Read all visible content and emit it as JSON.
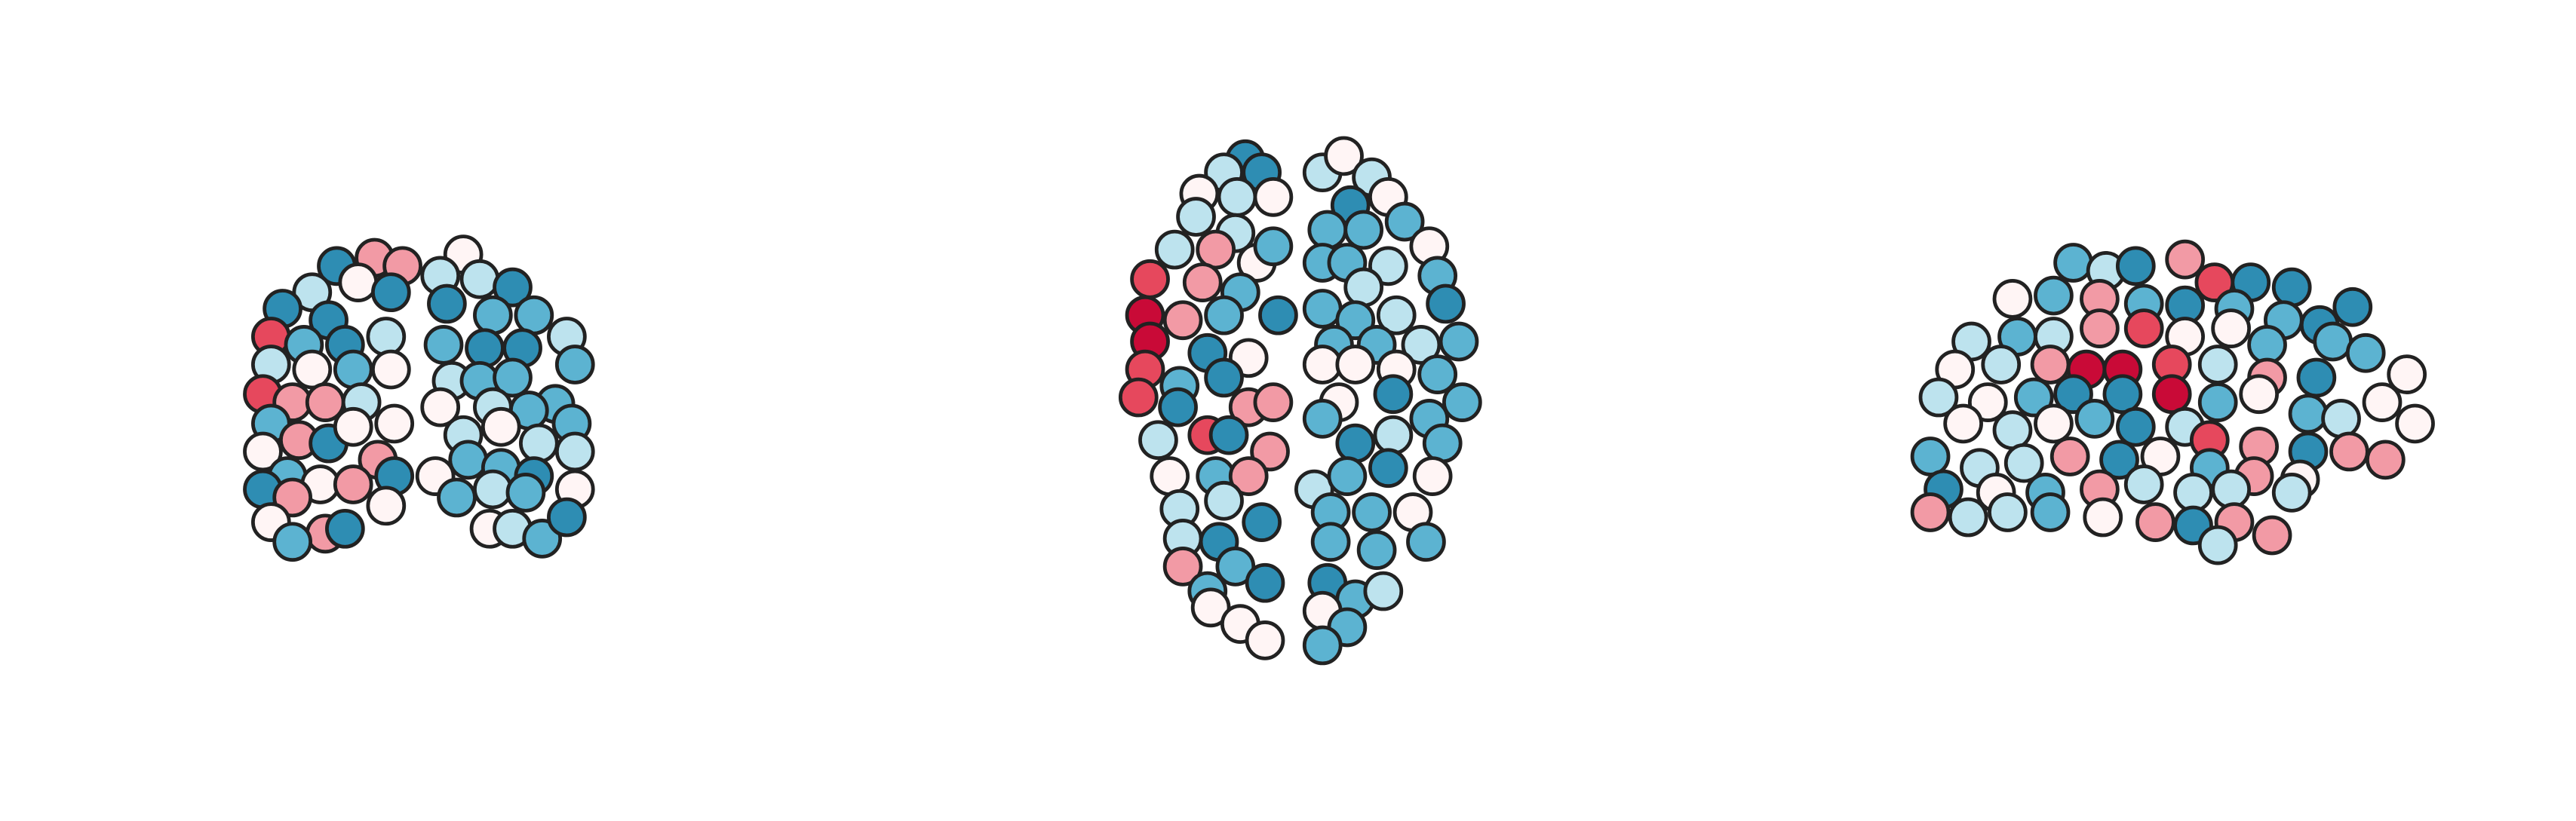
{
  "chart_data": {
    "type": "scatter",
    "xlim": [
      0,
      1568
    ],
    "ylim": [
      500,
      0
    ],
    "marker_edge": "#222222",
    "series": [
      {
        "x": [
          205,
          228,
          245,
          218,
          238,
          190,
          172,
          200,
          165,
          185,
          210,
          235,
          165,
          190,
          215,
          238,
          160,
          178,
          198,
          220,
          240,
          165,
          182,
          200,
          215,
          230,
          160,
          175,
          195,
          215,
          240,
          160,
          178,
          165,
          198,
          178,
          210,
          235,
          282,
          268,
          292,
          312,
          272,
          300,
          325,
          345,
          270,
          295,
          318,
          350,
          275,
          292,
          312,
          338,
          268,
          300,
          322,
          348,
          282,
          305,
          328,
          350,
          265,
          285,
          305,
          325,
          350,
          278,
          300,
          320,
          298,
          312,
          330,
          345
        ],
        "y": [
          162,
          157,
          162,
          172,
          178,
          178,
          188,
          195,
          205,
          210,
          210,
          205,
          222,
          225,
          225,
          225,
          240,
          245,
          245,
          245,
          258,
          258,
          268,
          270,
          260,
          280,
          275,
          290,
          295,
          295,
          290,
          298,
          303,
          318,
          325,
          330,
          322,
          308,
          155,
          168,
          170,
          175,
          185,
          192,
          192,
          205,
          210,
          212,
          212,
          222,
          232,
          232,
          230,
          246,
          248,
          248,
          250,
          258,
          265,
          260,
          270,
          275,
          290,
          280,
          285,
          290,
          298,
          303,
          298,
          300,
          322,
          322,
          328,
          315
        ],
        "colors": [
          "#2e8db3",
          "#f29aa5",
          "#f29aa5",
          "#fff5f5",
          "#2e8db3",
          "#bde3ee",
          "#2e8db3",
          "#2e8db3",
          "#e6485d",
          "#5cb3d1",
          "#2e8db3",
          "#bde3ee",
          "#bde3ee",
          "#fff5f5",
          "#5cb3d1",
          "#fff5f5",
          "#e6485d",
          "#f29aa5",
          "#f29aa5",
          "#bde3ee",
          "#fff5f5",
          "#5cb3d1",
          "#f29aa5",
          "#2e8db3",
          "#fff5f5",
          "#f29aa5",
          "#fff5f5",
          "#5cb3d1",
          "#fff5f5",
          "#f29aa5",
          "#2e8db3",
          "#2e8db3",
          "#f29aa5",
          "#fff5f5",
          "#f29aa5",
          "#5cb3d1",
          "#2e8db3",
          "#fff5f5",
          "#fff5f5",
          "#bde3ee",
          "#bde3ee",
          "#2e8db3",
          "#2e8db3",
          "#5cb3d1",
          "#5cb3d1",
          "#bde3ee",
          "#5cb3d1",
          "#2e8db3",
          "#2e8db3",
          "#5cb3d1",
          "#bde3ee",
          "#5cb3d1",
          "#5cb3d1",
          "#5cb3d1",
          "#fff5f5",
          "#bde3ee",
          "#5cb3d1",
          "#5cb3d1",
          "#bde3ee",
          "#fff5f5",
          "#bde3ee",
          "#bde3ee",
          "#fff5f5",
          "#5cb3d1",
          "#5cb3d1",
          "#2e8db3",
          "#fff5f5",
          "#5cb3d1",
          "#bde3ee",
          "#5cb3d1",
          "#fff5f5",
          "#bde3ee",
          "#5cb3d1",
          "#2e8db3"
        ]
      },
      {
        "x": [
          758,
          745,
          768,
          730,
          753,
          775,
          728,
          752,
          740,
          715,
          765,
          775,
          700,
          732,
          755,
          778,
          697,
          720,
          745,
          700,
          735,
          760,
          697,
          718,
          745,
          693,
          717,
          760,
          775,
          705,
          735,
          748,
          773,
          712,
          740,
          760,
          718,
          745,
          768,
          720,
          742,
          720,
          752,
          735,
          770,
          737,
          755,
          770,
          805,
          818,
          835,
          822,
          845,
          808,
          830,
          855,
          870,
          805,
          820,
          845,
          875,
          830,
          880,
          805,
          825,
          850,
          812,
          838,
          865,
          888,
          805,
          825,
          850,
          875,
          890,
          815,
          848,
          870,
          805,
          825,
          848,
          878,
          800,
          820,
          845,
          872,
          810,
          835,
          860,
          810,
          838,
          868,
          808,
          825,
          842,
          805,
          820,
          805
        ],
        "y": [
          97,
          105,
          105,
          118,
          120,
          120,
          132,
          142,
          152,
          152,
          160,
          150,
          170,
          172,
          178,
          192,
          192,
          195,
          192,
          208,
          215,
          218,
          225,
          235,
          230,
          242,
          248,
          248,
          245,
          268,
          265,
          265,
          275,
          290,
          290,
          290,
          310,
          305,
          318,
          328,
          330,
          345,
          345,
          360,
          355,
          370,
          380,
          390,
          105,
          95,
          108,
          125,
          120,
          140,
          140,
          135,
          150,
          160,
          160,
          162,
          168,
          175,
          185,
          188,
          195,
          192,
          210,
          210,
          210,
          208,
          222,
          222,
          225,
          228,
          245,
          245,
          240,
          255,
          255,
          270,
          265,
          270,
          298,
          290,
          285,
          290,
          312,
          312,
          312,
          330,
          335,
          330,
          355,
          365,
          360,
          372,
          382,
          393
        ],
        "colors": [
          "#2e8db3",
          "#bde3ee",
          "#2e8db3",
          "#fff5f5",
          "#bde3ee",
          "#fff5f5",
          "#bde3ee",
          "#bde3ee",
          "#f29aa5",
          "#bde3ee",
          "#fff5f5",
          "#5cb3d1",
          "#e6485d",
          "#f29aa5",
          "#5cb3d1",
          "#2e8db3",
          "#c90a37",
          "#f29aa5",
          "#5cb3d1",
          "#c90a37",
          "#2e8db3",
          "#fff5f5",
          "#e6485d",
          "#5cb3d1",
          "#2e8db3",
          "#e6485d",
          "#2e8db3",
          "#f29aa5",
          "#f29aa5",
          "#bde3ee",
          "#e6485d",
          "#2e8db3",
          "#f29aa5",
          "#fff5f5",
          "#5cb3d1",
          "#f29aa5",
          "#bde3ee",
          "#bde3ee",
          "#2e8db3",
          "#bde3ee",
          "#2e8db3",
          "#f29aa5",
          "#5cb3d1",
          "#5cb3d1",
          "#2e8db3",
          "#fff5f5",
          "#fff5f5",
          "#fff5f5",
          "#bde3ee",
          "#fff5f5",
          "#bde3ee",
          "#2e8db3",
          "#fff5f5",
          "#5cb3d1",
          "#5cb3d1",
          "#5cb3d1",
          "#fff5f5",
          "#5cb3d1",
          "#5cb3d1",
          "#bde3ee",
          "#5cb3d1",
          "#bde3ee",
          "#2e8db3",
          "#5cb3d1",
          "#5cb3d1",
          "#bde3ee",
          "#5cb3d1",
          "#5cb3d1",
          "#bde3ee",
          "#5cb3d1",
          "#fff5f5",
          "#fff5f5",
          "#fff5f5",
          "#5cb3d1",
          "#5cb3d1",
          "#fff5f5",
          "#2e8db3",
          "#5cb3d1",
          "#5cb3d1",
          "#2e8db3",
          "#bde3ee",
          "#5cb3d1",
          "#bde3ee",
          "#5cb3d1",
          "#2e8db3",
          "#fff5f5",
          "#5cb3d1",
          "#5cb3d1",
          "#fff5f5",
          "#5cb3d1",
          "#5cb3d1",
          "#5cb3d1",
          "#2e8db3",
          "#5cb3d1",
          "#bde3ee",
          "#fff5f5",
          "#5cb3d1",
          "#5cb3d1"
        ]
      },
      {
        "x": [
          1262,
          1282,
          1300,
          1330,
          1348,
          1370,
          1395,
          1225,
          1250,
          1278,
          1305,
          1330,
          1360,
          1390,
          1412,
          1432,
          1200,
          1228,
          1250,
          1278,
          1305,
          1330,
          1358,
          1380,
          1420,
          1440,
          1190,
          1218,
          1248,
          1270,
          1292,
          1322,
          1350,
          1380,
          1410,
          1465,
          1180,
          1210,
          1238,
          1262,
          1292,
          1322,
          1350,
          1375,
          1405,
          1425,
          1450,
          1195,
          1225,
          1250,
          1275,
          1300,
          1330,
          1345,
          1375,
          1405,
          1430,
          1470,
          1175,
          1205,
          1232,
          1260,
          1290,
          1315,
          1345,
          1372,
          1400,
          1452,
          1183,
          1215,
          1245,
          1278,
          1305,
          1335,
          1358,
          1395,
          1175,
          1198,
          1222,
          1248,
          1280,
          1312,
          1335,
          1360,
          1350,
          1383
        ],
        "y": [
          160,
          165,
          162,
          158,
          172,
          172,
          175,
          182,
          180,
          182,
          185,
          186,
          188,
          195,
          198,
          187,
          208,
          205,
          205,
          200,
          200,
          205,
          200,
          210,
          208,
          215,
          225,
          222,
          222,
          225,
          225,
          222,
          222,
          230,
          230,
          228,
          242,
          245,
          242,
          240,
          240,
          240,
          245,
          240,
          252,
          255,
          245,
          258,
          262,
          258,
          255,
          260,
          260,
          268,
          272,
          275,
          275,
          258,
          278,
          285,
          282,
          278,
          280,
          278,
          285,
          290,
          292,
          280,
          298,
          300,
          300,
          298,
          295,
          300,
          298,
          300,
          312,
          315,
          312,
          312,
          315,
          318,
          320,
          318,
          332,
          326
        ],
        "colors": [
          "#5cb3d1",
          "#bde3ee",
          "#2e8db3",
          "#f29aa5",
          "#e6485d",
          "#2e8db3",
          "#2e8db3",
          "#fff5f5",
          "#5cb3d1",
          "#f29aa5",
          "#5cb3d1",
          "#2e8db3",
          "#5cb3d1",
          "#5cb3d1",
          "#2e8db3",
          "#2e8db3",
          "#bde3ee",
          "#5cb3d1",
          "#bde3ee",
          "#f29aa5",
          "#e6485d",
          "#fff5f5",
          "#fff5f5",
          "#5cb3d1",
          "#5cb3d1",
          "#5cb3d1",
          "#fff5f5",
          "#bde3ee",
          "#f29aa5",
          "#c90a37",
          "#c90a37",
          "#e6485d",
          "#bde3ee",
          "#f29aa5",
          "#2e8db3",
          "#fff5f5",
          "#bde3ee",
          "#fff5f5",
          "#5cb3d1",
          "#2e8db3",
          "#2e8db3",
          "#c90a37",
          "#5cb3d1",
          "#fff5f5",
          "#5cb3d1",
          "#bde3ee",
          "#fff5f5",
          "#fff5f5",
          "#bde3ee",
          "#fff5f5",
          "#5cb3d1",
          "#2e8db3",
          "#bde3ee",
          "#e6485d",
          "#f29aa5",
          "#2e8db3",
          "#f29aa5",
          "#fff5f5",
          "#5cb3d1",
          "#bde3ee",
          "#bde3ee",
          "#f29aa5",
          "#2e8db3",
          "#fff5f5",
          "#5cb3d1",
          "#f29aa5",
          "#fff5f5",
          "#f29aa5",
          "#2e8db3",
          "#fff5f5",
          "#5cb3d1",
          "#f29aa5",
          "#bde3ee",
          "#bde3ee",
          "#bde3ee",
          "#bde3ee",
          "#f29aa5",
          "#bde3ee",
          "#bde3ee",
          "#5cb3d1",
          "#fff5f5",
          "#f29aa5",
          "#2e8db3",
          "#f29aa5",
          "#bde3ee",
          "#f29aa5"
        ]
      }
    ]
  }
}
